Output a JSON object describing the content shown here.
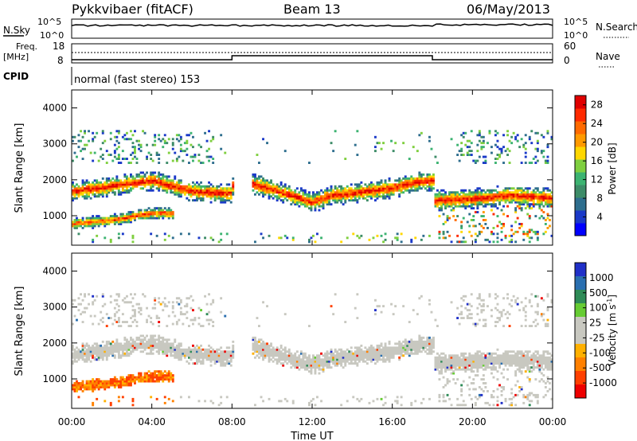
{
  "header": {
    "station": "Pykkvibaer (fitACF)",
    "beam": "Beam 13",
    "date": "06/May/2013"
  },
  "noise_panel": {
    "left_label": "N.Sky",
    "left_ticks": [
      "10^5",
      "10^0"
    ],
    "right_ticks": [
      "10^5",
      "10^0"
    ],
    "right_label": "N.Search"
  },
  "freq_panel": {
    "left_label_1": "Freq.",
    "left_label_2": "[MHz]",
    "left_ticks": [
      "18",
      "8"
    ],
    "right_ticks": [
      "60",
      "0"
    ],
    "right_label": "Nave"
  },
  "cpid_panel": {
    "label": "CPID",
    "text": "normal (fast stereo) 153"
  },
  "colors": {
    "power": [
      "#0000ff",
      "#1a39c8",
      "#2e6e8e",
      "#3d8c68",
      "#3cb371",
      "#7fcf3f",
      "#ffd700",
      "#ff9a00",
      "#ff6a00",
      "#ff2a00",
      "#e00000"
    ],
    "velocity": [
      "#2030c8",
      "#2a6fb0",
      "#2e8b57",
      "#66cc33",
      "#c8c8c0",
      "#c8c8c0",
      "#ffb000",
      "#ff8000",
      "#ff4000",
      "#ee0000"
    ]
  },
  "chart_data": [
    {
      "type": "heatmap",
      "title": "",
      "xlabel": "",
      "ylabel": "Slant Range [km]",
      "x_range": [
        "00:00",
        "24:00"
      ],
      "x_ticks": [
        "00:00",
        "04:00",
        "08:00",
        "12:00",
        "16:00",
        "20:00",
        "00:00"
      ],
      "ylim": [
        180,
        4500
      ],
      "y_ticks": [
        1000,
        2000,
        3000,
        4000
      ],
      "colorbar": {
        "label": "Power [dB]",
        "range": [
          0,
          30
        ],
        "ticks": [
          "4",
          "8",
          "12",
          "16",
          "20",
          "24",
          "28"
        ]
      },
      "main_band_center_km": {
        "hours": [
          0,
          2,
          4,
          6,
          7.9,
          8.1,
          10,
          12,
          13,
          14,
          16,
          17,
          18,
          18.1,
          20,
          22,
          24
        ],
        "km": [
          1650,
          1800,
          1950,
          1650,
          1600,
          2000,
          1700,
          1350,
          1550,
          1600,
          1750,
          1900,
          1950,
          1400,
          1450,
          1550,
          1450
        ]
      },
      "lower_band_center_km": {
        "hours": [
          0,
          2,
          4,
          5
        ],
        "km": [
          750,
          850,
          1050,
          1050
        ]
      }
    },
    {
      "type": "heatmap",
      "title": "",
      "xlabel": "Time UT",
      "ylabel": "Slant Range [km]",
      "x_range": [
        "00:00",
        "24:00"
      ],
      "x_ticks": [
        "00:00",
        "04:00",
        "08:00",
        "12:00",
        "16:00",
        "20:00",
        "00:00"
      ],
      "ylim": [
        180,
        4500
      ],
      "y_ticks": [
        1000,
        2000,
        3000,
        4000
      ],
      "colorbar": {
        "label": "Velocity [m s^-1]",
        "ticks": [
          "1000",
          "500",
          "100",
          "25",
          "-25",
          "-100",
          "-500",
          "-1000"
        ]
      }
    }
  ],
  "labels": {
    "power_cbar_title": "Power [dB]",
    "velocity_cbar_title": "Velocity  [m s",
    "velocity_cbar_exp": "-1",
    "velocity_cbar_close": "]",
    "x_axis_title": "Time UT"
  }
}
